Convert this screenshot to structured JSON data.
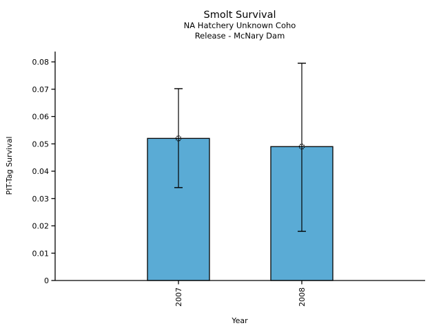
{
  "chart_data": {
    "type": "bar",
    "title": "Smolt Survival",
    "subtitle1": "NA Hatchery Unknown Coho",
    "subtitle2": "Release - McNary Dam",
    "xlabel": "Year",
    "ylabel": "PIT-Tag Survival",
    "categories": [
      "2007",
      "2008"
    ],
    "values": [
      0.052,
      0.049
    ],
    "error_bars": [
      {
        "low": 0.034,
        "high": 0.0702
      },
      {
        "low": 0.018,
        "high": 0.0795
      }
    ],
    "marker": "open-circle",
    "ylim": [
      0,
      0.08
    ],
    "yticks": [
      0,
      0.01,
      0.02,
      0.03,
      0.04,
      0.05,
      0.06,
      0.07,
      0.08
    ],
    "ytick_labels": [
      "0",
      "0.01",
      "0.02",
      "0.03",
      "0.04",
      "0.05",
      "0.06",
      "0.07",
      "0.08"
    ],
    "xtick_label_rotation": -90,
    "grid": false,
    "legend_position": "none",
    "bar_color": "#5AABD5",
    "bar_edge_color": "#000000",
    "axis_color": "#000000",
    "text_color": "#000000"
  }
}
